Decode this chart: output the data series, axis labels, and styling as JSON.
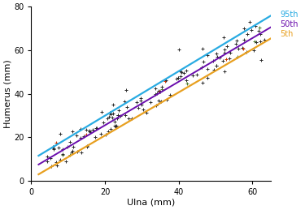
{
  "title": "",
  "xlabel": "Ulna (mm)",
  "ylabel": "Humerus (mm)",
  "xlim": [
    0,
    65
  ],
  "ylim": [
    0,
    80
  ],
  "xticks": [
    0,
    20,
    40,
    60
  ],
  "yticks": [
    0,
    20,
    40,
    60,
    80
  ],
  "line_95th": {
    "slope": 1.02,
    "intercept": 9.5,
    "color": "#29ABE2",
    "lw": 1.6
  },
  "line_50th": {
    "slope": 1.0,
    "intercept": 5.5,
    "color": "#6A0DAD",
    "lw": 1.4
  },
  "line_5th": {
    "slope": 0.99,
    "intercept": 1.0,
    "color": "#E8A020",
    "lw": 1.6
  },
  "scatter_color_main": "#2a2a2a",
  "scatter_color_green": "#4a7a2a",
  "scatter_color_red": "#cc3300",
  "legend_labels": [
    "95th",
    "50th",
    "5th"
  ],
  "legend_colors": [
    "#29ABE2",
    "#6A0DAD",
    "#E8A020"
  ],
  "seed": 42,
  "n_points": 150,
  "x_min": 4,
  "x_max": 64,
  "noise_std": 3.8
}
